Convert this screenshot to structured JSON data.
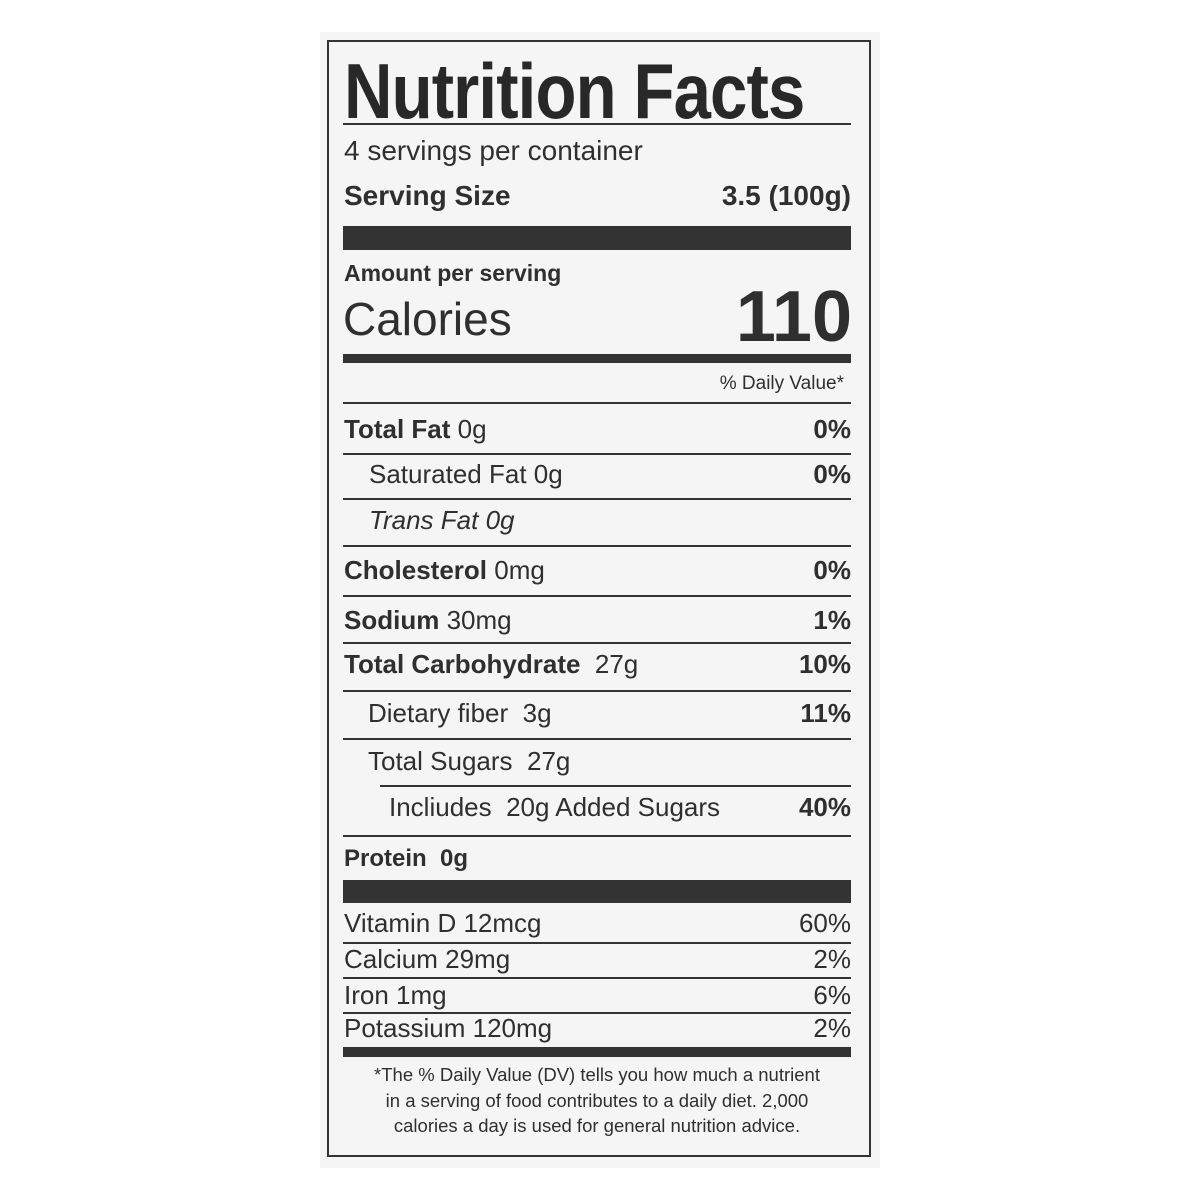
{
  "title": "Nutrition Facts",
  "servings_per_container": "4 servings per container",
  "serving_size": {
    "label": "Serving Size",
    "value": "3.5 (100g)"
  },
  "amount_per_serving": "Amount per serving",
  "calories": {
    "label": "Calories",
    "value": "110"
  },
  "daily_value_header": "% Daily Value*",
  "nutrients": [
    {
      "name": "Total Fat",
      "amount": "0g",
      "dv": "0%"
    },
    {
      "name": "Saturated Fat",
      "amount": "0g",
      "dv": "0%"
    },
    {
      "name": "Trans Fat",
      "amount": "0g",
      "dv": ""
    },
    {
      "name": "Cholesterol",
      "amount": "0mg",
      "dv": "0%"
    },
    {
      "name": "Sodium",
      "amount": "30mg",
      "dv": "1%"
    },
    {
      "name": "Total Carbohydrate",
      "amount": "27g",
      "dv": "10%"
    },
    {
      "name": "Dietary fiber",
      "amount": "3g",
      "dv": "11%"
    },
    {
      "name": "Total Sugars",
      "amount": "27g",
      "dv": ""
    },
    {
      "name": "Incliudes",
      "amount": "20g Added Sugars",
      "dv": "40%"
    },
    {
      "name": "Protein",
      "amount": "0g",
      "dv": ""
    }
  ],
  "vitamins": [
    {
      "name": "Vitamin D 12mcg",
      "dv": "60%"
    },
    {
      "name": "Calcium 29mg",
      "dv": "2%"
    },
    {
      "name": "Iron 1mg",
      "dv": "6%"
    },
    {
      "name": "Potassium 120mg",
      "dv": "2%"
    }
  ],
  "footnote": [
    "*The % Daily Value (DV) tells you how much a nutrient",
    "in a serving of food contributes to a daily diet. 2,000",
    "calories a day is used for general nutrition advice."
  ]
}
